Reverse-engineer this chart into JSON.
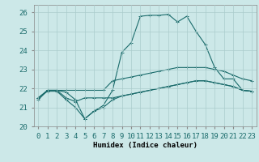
{
  "background_color": "#cce8e8",
  "grid_color": "#aacccc",
  "line_color": "#1a6b6b",
  "xlabel": "Humidex (Indice chaleur)",
  "xlim": [
    -0.5,
    23.5
  ],
  "ylim": [
    20.0,
    26.4
  ],
  "yticks": [
    20,
    21,
    22,
    23,
    24,
    25,
    26
  ],
  "xticks": [
    0,
    1,
    2,
    3,
    4,
    5,
    6,
    7,
    8,
    9,
    10,
    11,
    12,
    13,
    14,
    15,
    16,
    17,
    18,
    19,
    20,
    21,
    22,
    23
  ],
  "line1_y": [
    21.4,
    21.9,
    21.9,
    21.8,
    21.4,
    20.4,
    20.8,
    21.1,
    21.9,
    23.9,
    24.4,
    25.8,
    25.85,
    25.85,
    25.9,
    25.5,
    25.8,
    25.0,
    24.3,
    23.1,
    22.5,
    22.5,
    21.9,
    21.85
  ],
  "line2_y": [
    21.5,
    21.9,
    21.9,
    21.9,
    21.9,
    21.9,
    21.9,
    21.9,
    22.4,
    22.5,
    22.6,
    22.7,
    22.8,
    22.9,
    23.0,
    23.1,
    23.1,
    23.1,
    23.1,
    23.0,
    22.9,
    22.7,
    22.5,
    22.4
  ],
  "line3_y": [
    21.5,
    21.9,
    21.9,
    21.5,
    21.3,
    21.5,
    21.5,
    21.5,
    21.5,
    21.6,
    21.7,
    21.8,
    21.9,
    22.0,
    22.1,
    22.2,
    22.3,
    22.4,
    22.4,
    22.3,
    22.2,
    22.1,
    21.9,
    21.85
  ],
  "line4_y": [
    21.5,
    21.85,
    21.85,
    21.4,
    21.0,
    20.4,
    20.8,
    21.0,
    21.4,
    21.6,
    21.7,
    21.8,
    21.9,
    22.0,
    22.1,
    22.2,
    22.3,
    22.4,
    22.4,
    22.3,
    22.2,
    22.1,
    21.9,
    21.85
  ],
  "font_size": 6.5,
  "lw": 0.8,
  "marker_size": 3.0
}
